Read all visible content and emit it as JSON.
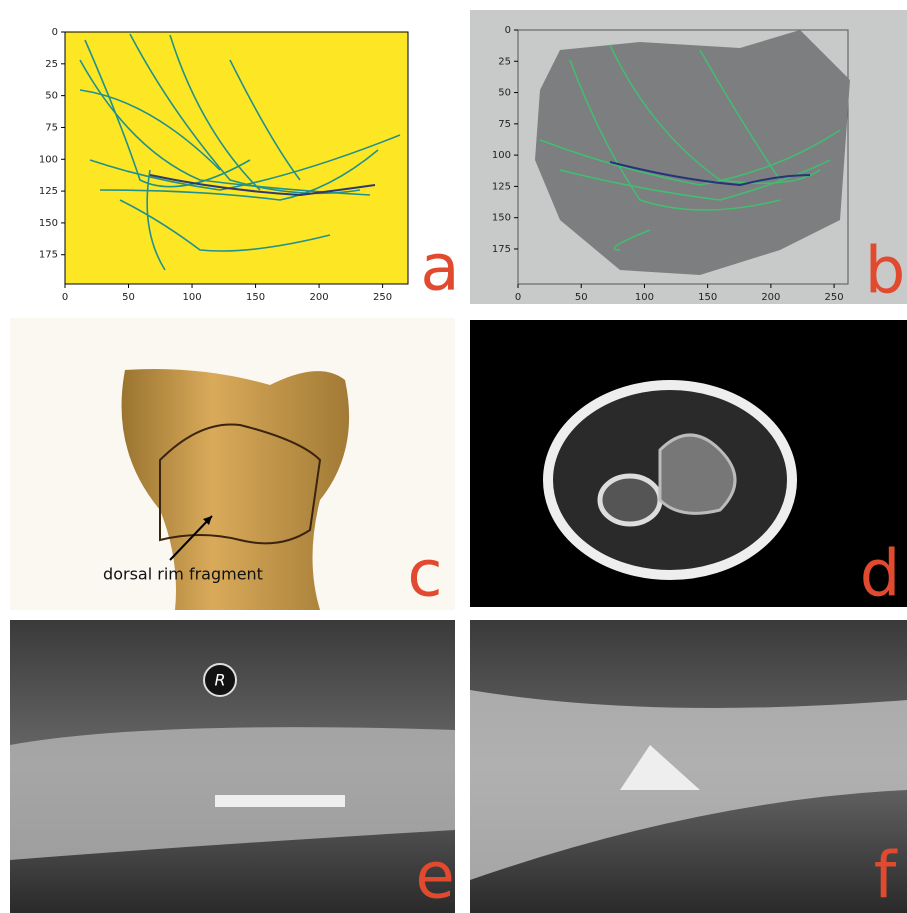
{
  "figure": {
    "a": {
      "label": "a",
      "xlim": [
        0,
        270
      ],
      "ylim": [
        198,
        0
      ],
      "xticks": [
        0,
        50,
        100,
        150,
        200,
        250
      ],
      "yticks": [
        0,
        25,
        50,
        75,
        100,
        125,
        150,
        175
      ]
    },
    "b": {
      "label": "b",
      "xlim": [
        0,
        261
      ],
      "ylim": [
        203,
        0
      ],
      "xticks": [
        0,
        50,
        100,
        150,
        200,
        250
      ],
      "yticks": [
        0,
        25,
        50,
        75,
        100,
        125,
        150,
        175
      ]
    },
    "c": {
      "label": "c",
      "annotation": "dorsal rim fragment"
    },
    "d": {
      "label": "d"
    },
    "e": {
      "label": "e",
      "marker": "R"
    },
    "f": {
      "label": "f"
    }
  }
}
